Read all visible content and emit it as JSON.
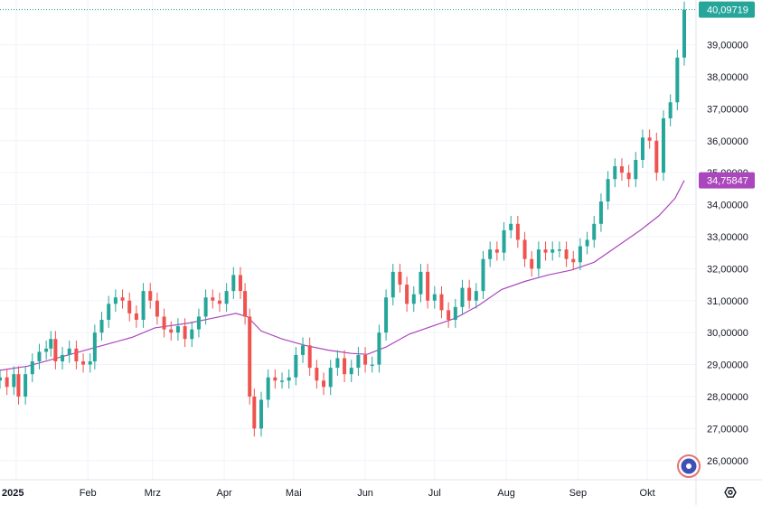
{
  "chart_data": {
    "type": "candlestick",
    "title": "",
    "xlabel": "",
    "ylabel": "",
    "ylim": [
      25.4,
      40.4
    ],
    "y_ticks": [
      "26,00000",
      "27,00000",
      "28,00000",
      "29,00000",
      "30,00000",
      "31,00000",
      "32,00000",
      "33,00000",
      "34,00000",
      "35,00000",
      "36,00000",
      "37,00000",
      "38,00000",
      "39,00000"
    ],
    "y_tick_values": [
      26,
      27,
      28,
      29,
      30,
      31,
      32,
      33,
      34,
      35,
      36,
      37,
      38,
      39
    ],
    "x_ticks": [
      "2025",
      "Feb",
      "Mrz",
      "Apr",
      "Mai",
      "Jun",
      "Jul",
      "Aug",
      "Sep",
      "Okt"
    ],
    "x_tick_days": [
      0,
      31,
      59,
      90,
      120,
      151,
      181,
      212,
      243,
      273
    ],
    "grid": true,
    "series": [
      {
        "kind": "ohlc",
        "points": [
          [
            -7,
            28.6
          ],
          [
            -4,
            28.3
          ],
          [
            -1,
            28.7
          ],
          [
            1,
            28.0
          ],
          [
            4,
            28.7
          ],
          [
            7,
            29.1
          ],
          [
            10,
            29.4
          ],
          [
            13,
            29.5
          ],
          [
            15,
            29.8
          ],
          [
            17,
            29.1
          ],
          [
            20,
            29.3
          ],
          [
            23,
            29.5
          ],
          [
            26,
            29.1
          ],
          [
            29,
            29.0
          ],
          [
            32,
            29.1
          ],
          [
            34,
            30.0
          ],
          [
            37,
            30.4
          ],
          [
            40,
            30.9
          ],
          [
            43,
            31.1
          ],
          [
            46,
            31.0
          ],
          [
            49,
            30.6
          ],
          [
            52,
            30.4
          ],
          [
            55,
            31.3
          ],
          [
            58,
            31.0
          ],
          [
            61,
            30.5
          ],
          [
            64,
            30.1
          ],
          [
            67,
            30.0
          ],
          [
            70,
            30.2
          ],
          [
            73,
            29.8
          ],
          [
            76,
            30.1
          ],
          [
            79,
            30.5
          ],
          [
            82,
            31.1
          ],
          [
            85,
            31.0
          ],
          [
            88,
            30.9
          ],
          [
            91,
            31.3
          ],
          [
            94,
            31.8
          ],
          [
            97,
            31.3
          ],
          [
            99,
            30.5
          ],
          [
            101,
            28.0
          ],
          [
            103,
            27.0
          ],
          [
            106,
            27.9
          ],
          [
            109,
            28.6
          ],
          [
            112,
            28.5
          ],
          [
            115,
            28.5
          ],
          [
            118,
            28.6
          ],
          [
            121,
            29.3
          ],
          [
            124,
            29.6
          ],
          [
            127,
            28.9
          ],
          [
            130,
            28.5
          ],
          [
            133,
            28.3
          ],
          [
            136,
            28.9
          ],
          [
            139,
            29.2
          ],
          [
            142,
            28.7
          ],
          [
            145,
            28.9
          ],
          [
            148,
            29.3
          ],
          [
            151,
            29.0
          ],
          [
            154,
            29.0
          ],
          [
            157,
            30.0
          ],
          [
            160,
            31.1
          ],
          [
            163,
            31.9
          ],
          [
            166,
            31.5
          ],
          [
            169,
            30.9
          ],
          [
            172,
            31.2
          ],
          [
            175,
            31.9
          ],
          [
            178,
            31.0
          ],
          [
            181,
            31.2
          ],
          [
            184,
            30.7
          ],
          [
            187,
            30.4
          ],
          [
            190,
            30.8
          ],
          [
            193,
            31.4
          ],
          [
            196,
            31.0
          ],
          [
            199,
            31.3
          ],
          [
            202,
            32.3
          ],
          [
            205,
            32.6
          ],
          [
            208,
            32.5
          ],
          [
            211,
            33.2
          ],
          [
            214,
            33.4
          ],
          [
            217,
            32.9
          ],
          [
            220,
            32.3
          ],
          [
            223,
            32.0
          ],
          [
            226,
            32.6
          ],
          [
            229,
            32.5
          ],
          [
            232,
            32.6
          ],
          [
            235,
            32.6
          ],
          [
            238,
            32.3
          ],
          [
            241,
            32.2
          ],
          [
            244,
            32.7
          ],
          [
            247,
            32.9
          ],
          [
            250,
            33.4
          ],
          [
            253,
            34.1
          ],
          [
            256,
            34.8
          ],
          [
            259,
            35.2
          ],
          [
            262,
            35.0
          ],
          [
            265,
            34.8
          ],
          [
            268,
            35.4
          ],
          [
            271,
            36.1
          ],
          [
            274,
            36.0
          ],
          [
            277,
            35.0
          ],
          [
            280,
            36.7
          ],
          [
            283,
            37.2
          ],
          [
            286,
            38.6
          ],
          [
            289,
            40.1
          ]
        ]
      },
      {
        "kind": "moving_average",
        "badge": "34,75847",
        "color": "#ab47bc",
        "points": [
          [
            -7,
            28.82
          ],
          [
            5,
            28.95
          ],
          [
            20,
            29.25
          ],
          [
            35,
            29.55
          ],
          [
            50,
            29.85
          ],
          [
            60,
            30.15
          ],
          [
            75,
            30.3
          ],
          [
            85,
            30.45
          ],
          [
            95,
            30.6
          ],
          [
            100,
            30.5
          ],
          [
            106,
            30.05
          ],
          [
            115,
            29.8
          ],
          [
            125,
            29.6
          ],
          [
            135,
            29.45
          ],
          [
            145,
            29.35
          ],
          [
            152,
            29.32
          ],
          [
            160,
            29.55
          ],
          [
            170,
            29.95
          ],
          [
            180,
            30.2
          ],
          [
            190,
            30.45
          ],
          [
            200,
            30.85
          ],
          [
            210,
            31.35
          ],
          [
            220,
            31.6
          ],
          [
            230,
            31.8
          ],
          [
            240,
            31.95
          ],
          [
            250,
            32.2
          ],
          [
            260,
            32.7
          ],
          [
            270,
            33.2
          ],
          [
            278,
            33.65
          ],
          [
            285,
            34.2
          ],
          [
            289,
            34.76
          ]
        ]
      }
    ],
    "last_price_badge": "40,09719",
    "accent_up": "#26a69a",
    "accent_down": "#ef5350",
    "ma_color": "#ab47bc"
  },
  "icons": {
    "settings_icon": "gear-icon",
    "logo_icon": "logo-icon"
  }
}
